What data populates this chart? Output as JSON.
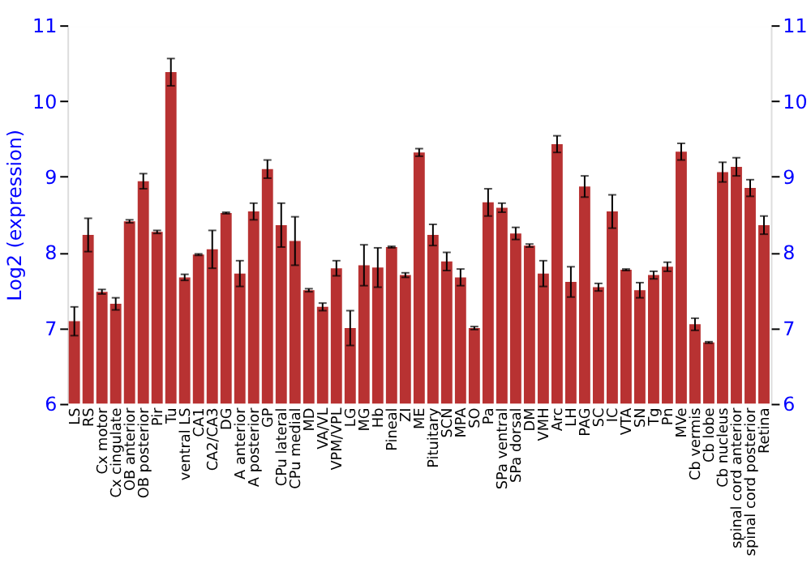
{
  "chart_data": {
    "type": "bar",
    "ylabel": "Log2 (expression)",
    "categories": [
      "LS",
      "RS",
      "Cx motor",
      "Cx cingulate",
      "OB anterior",
      "OB posterior",
      "Pir",
      "Tu",
      "ventral LS",
      "CA1",
      "CA2/CA3",
      "DG",
      "A anterior",
      "A posterior",
      "GP",
      "CPu lateral",
      "CPu medial",
      "MD",
      "VA/VL",
      "VPM/VPL",
      "LG",
      "MG",
      "Hb",
      "Pineal",
      "ZI",
      "ME",
      "Pituitary",
      "SCN",
      "MPA",
      "SO",
      "Pa",
      "SPa ventral",
      "SPa dorsal",
      "DM",
      "VMH",
      "Arc",
      "LH",
      "PAG",
      "SC",
      "IC",
      "VTA",
      "SN",
      "Tg",
      "Pn",
      "MVe",
      "Cb vermis",
      "Cb lobe",
      "Cb nucleus",
      "spinal cord anterior",
      "spinal cord posterior",
      "Retina"
    ],
    "values": [
      7.09,
      8.23,
      7.48,
      7.32,
      8.41,
      8.94,
      8.27,
      10.38,
      7.67,
      7.97,
      8.04,
      8.52,
      7.72,
      8.54,
      9.1,
      8.36,
      8.15,
      7.5,
      7.28,
      7.79,
      7.0,
      7.83,
      7.8,
      8.07,
      7.7,
      9.32,
      8.23,
      7.88,
      7.67,
      7.0,
      8.66,
      8.59,
      8.25,
      8.09,
      7.72,
      9.43,
      7.61,
      8.87,
      7.54,
      8.54,
      7.77,
      7.5,
      7.7,
      7.81,
      9.33,
      7.05,
      6.81,
      9.06,
      9.13,
      8.85,
      8.36
    ],
    "errors": [
      0.19,
      0.22,
      0.03,
      0.08,
      0.02,
      0.1,
      0.02,
      0.18,
      0.04,
      0.01,
      0.25,
      0.01,
      0.17,
      0.11,
      0.12,
      0.29,
      0.32,
      0.02,
      0.05,
      0.1,
      0.23,
      0.27,
      0.26,
      0.01,
      0.03,
      0.05,
      0.14,
      0.12,
      0.11,
      0.02,
      0.18,
      0.06,
      0.08,
      0.02,
      0.17,
      0.11,
      0.2,
      0.14,
      0.05,
      0.22,
      0.01,
      0.1,
      0.05,
      0.06,
      0.11,
      0.08,
      0.01,
      0.13,
      0.12,
      0.11,
      0.12
    ],
    "color": "#b83232",
    "ylim": [
      6,
      11
    ],
    "yticks": [
      6,
      7,
      8,
      9,
      10,
      11
    ],
    "y2lim": [
      6,
      11
    ],
    "y2ticks": [
      6,
      7,
      8,
      9,
      10,
      11
    ],
    "grid": "y"
  }
}
